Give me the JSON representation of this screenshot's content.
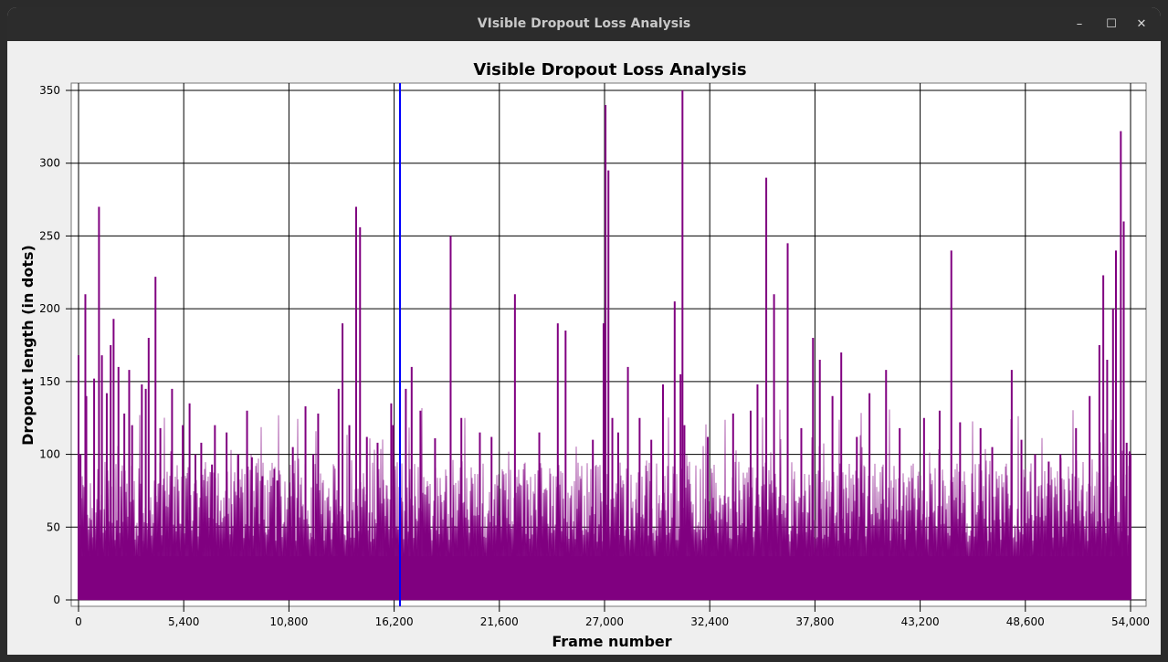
{
  "window": {
    "title": "VIsible Dropout Loss Analysis",
    "minimize_glyph": "–",
    "maximize_glyph": "☐",
    "close_glyph": "✕"
  },
  "chart_data": {
    "type": "area",
    "title": "Visible Dropout Loss Analysis",
    "xlabel": "Frame number",
    "ylabel": "Dropout length (in dots)",
    "xlim": [
      0,
      54000
    ],
    "ylim": [
      0,
      350
    ],
    "xticks": [
      0,
      5400,
      10800,
      16200,
      21600,
      27000,
      32400,
      37800,
      43200,
      48600,
      54000
    ],
    "xtick_labels": [
      "0",
      "5,400",
      "10,800",
      "16,200",
      "21,600",
      "27,000",
      "32,400",
      "37,800",
      "43,200",
      "48,600",
      "54,000"
    ],
    "yticks": [
      0,
      50,
      100,
      150,
      200,
      250,
      300,
      350
    ],
    "ytick_labels": [
      "0",
      "50",
      "100",
      "150",
      "200",
      "250",
      "300",
      "350"
    ],
    "grid": true,
    "series_color": "#800080",
    "marker": {
      "x": 16500,
      "color": "#0000ff"
    },
    "series": [
      {
        "x": [
          0,
          100,
          350,
          400,
          800,
          1050,
          1200,
          1450,
          1650,
          1800,
          2050,
          2350,
          2600,
          2750,
          3250,
          3450,
          3600,
          3950,
          4200,
          4800,
          5350,
          5700,
          6000,
          6300,
          6850,
          7000,
          7600,
          8200,
          8650,
          8900,
          9450,
          10050,
          10200,
          11000,
          11650,
          12050,
          12300,
          13350,
          13550,
          13900,
          14250,
          14450,
          14800,
          15350,
          16050,
          16150,
          16800,
          17100,
          17550,
          18300,
          19100,
          19650,
          20600,
          21200,
          22400,
          23650,
          24600,
          25000,
          26400,
          26950,
          27050,
          27200,
          27400,
          27700,
          28200,
          28800,
          29400,
          30000,
          30600,
          30900,
          31000,
          31100,
          32300,
          33600,
          34500,
          34850,
          35300,
          35700,
          36400,
          37100,
          37700,
          38050,
          38700,
          39150,
          39950,
          40600,
          41450,
          42150,
          43400,
          44200,
          44800,
          45250,
          46300,
          46900,
          47900,
          48400,
          49100,
          49800,
          50400,
          51200,
          51900,
          52400,
          52600,
          52800,
          53100,
          53250,
          53500,
          53650,
          53800,
          53950,
          54000
        ],
        "y": [
          168,
          100,
          210,
          140,
          152,
          270,
          168,
          142,
          175,
          193,
          160,
          128,
          158,
          120,
          148,
          145,
          180,
          222,
          118,
          145,
          120,
          135,
          100,
          108,
          93,
          120,
          115,
          100,
          130,
          98,
          85,
          90,
          82,
          105,
          133,
          100,
          128,
          145,
          190,
          120,
          270,
          256,
          112,
          108,
          135,
          120,
          145,
          160,
          130,
          111,
          250,
          125,
          115,
          112,
          210,
          115,
          190,
          185,
          110,
          190,
          340,
          295,
          125,
          115,
          160,
          125,
          110,
          148,
          205,
          155,
          350,
          120,
          112,
          128,
          130,
          148,
          290,
          210,
          245,
          118,
          180,
          165,
          140,
          170,
          112,
          142,
          158,
          118,
          125,
          130,
          240,
          122,
          118,
          105,
          158,
          110,
          100,
          95,
          100,
          118,
          140,
          175,
          223,
          165,
          200,
          240,
          322,
          260,
          108,
          102,
          100
        ]
      }
    ]
  }
}
